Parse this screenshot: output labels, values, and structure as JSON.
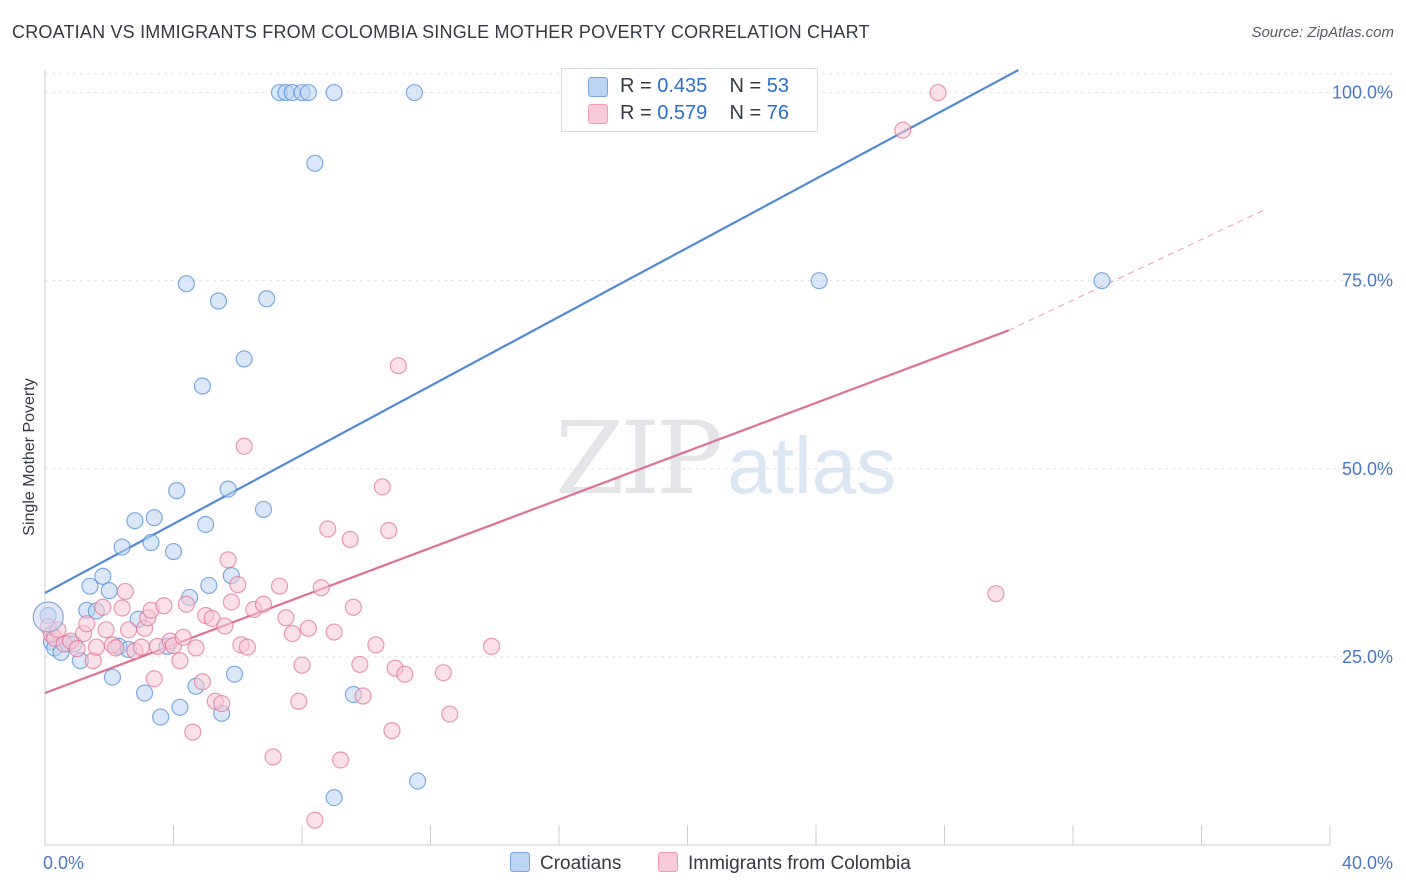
{
  "header": {
    "title": "CROATIAN VS IMMIGRANTS FROM COLOMBIA SINGLE MOTHER POVERTY CORRELATION CHART",
    "source": "Source: ZipAtlas.com"
  },
  "watermark": {
    "zip": "ZIP",
    "atlas": "atlas"
  },
  "legend": {
    "rows": [
      {
        "r_label": "R =",
        "r_value": "0.435",
        "n_label": "N =",
        "n_value": "53",
        "color": "#a8c8f0"
      },
      {
        "r_label": "R =",
        "r_value": "0.579",
        "n_label": "N =",
        "n_value": "76",
        "color": "#f5b6c9"
      }
    ]
  },
  "bottom_legend": {
    "series1": "Croatians",
    "series2": "Immigrants from Colombia"
  },
  "chart_data": {
    "type": "scatter",
    "ylabel": "Single Mother Poverty",
    "xlim": [
      0,
      40
    ],
    "ylim": [
      0,
      103
    ],
    "x_ticks": [
      0,
      4,
      8,
      12,
      16,
      20,
      24,
      28,
      32,
      36,
      40
    ],
    "x_tick_labels": [
      {
        "value": 0,
        "label": "0.0%"
      },
      {
        "value": 40,
        "label": "40.0%"
      }
    ],
    "y_ticks": [
      {
        "value": 25,
        "label": "25.0%"
      },
      {
        "value": 50,
        "label": "50.0%"
      },
      {
        "value": 75,
        "label": "75.0%"
      },
      {
        "value": 100,
        "label": "100.0%"
      }
    ],
    "grid": true,
    "series": [
      {
        "name": "Croatians",
        "color": "#4f8ad6",
        "fill": "#b9d3f3",
        "trend": {
          "x": [
            0,
            30.3
          ],
          "y": [
            33.5,
            103
          ]
        },
        "points": [
          [
            0.1,
            30.5
          ],
          [
            0.2,
            27.0
          ],
          [
            0.3,
            26.2
          ],
          [
            0.5,
            25.6
          ],
          [
            0.7,
            26.8
          ],
          [
            0.9,
            26.7
          ],
          [
            1.1,
            24.5
          ],
          [
            1.3,
            31.2
          ],
          [
            1.4,
            34.4
          ],
          [
            1.6,
            31.1
          ],
          [
            1.8,
            35.7
          ],
          [
            2.0,
            33.8
          ],
          [
            2.1,
            22.3
          ],
          [
            2.3,
            26.4
          ],
          [
            2.4,
            39.6
          ],
          [
            2.6,
            26.0
          ],
          [
            2.8,
            43.1
          ],
          [
            2.9,
            30.0
          ],
          [
            3.1,
            20.2
          ],
          [
            3.3,
            40.2
          ],
          [
            3.4,
            43.5
          ],
          [
            3.6,
            17.0
          ],
          [
            3.8,
            26.4
          ],
          [
            4.0,
            39.0
          ],
          [
            4.1,
            47.1
          ],
          [
            4.2,
            18.3
          ],
          [
            4.4,
            74.6
          ],
          [
            4.5,
            32.9
          ],
          [
            4.7,
            21.1
          ],
          [
            4.9,
            61.0
          ],
          [
            5.0,
            42.6
          ],
          [
            5.1,
            34.5
          ],
          [
            5.4,
            72.3
          ],
          [
            5.5,
            17.5
          ],
          [
            5.7,
            47.3
          ],
          [
            5.8,
            35.8
          ],
          [
            5.9,
            22.7
          ],
          [
            6.2,
            64.6
          ],
          [
            6.9,
            72.6
          ],
          [
            6.8,
            44.6
          ],
          [
            7.3,
            100.0
          ],
          [
            7.5,
            100.0
          ],
          [
            7.7,
            100.0
          ],
          [
            8.0,
            100.0
          ],
          [
            8.2,
            100.0
          ],
          [
            8.4,
            90.6
          ],
          [
            9.0,
            100.0
          ],
          [
            9.6,
            20.0
          ],
          [
            9.0,
            6.3
          ],
          [
            11.5,
            100.0
          ],
          [
            11.6,
            8.5
          ],
          [
            24.1,
            75.0
          ],
          [
            32.9,
            75.0
          ]
        ]
      },
      {
        "name": "Immigrants from Colombia",
        "color": "#e07098",
        "fill": "#f7c6d5",
        "trend": {
          "x": [
            0,
            30.0
          ],
          "y": [
            20.2,
            68.4
          ]
        },
        "trend_ext": {
          "x": [
            30.0,
            38.0
          ],
          "y": [
            68.4,
            84.5
          ]
        },
        "points": [
          [
            0.1,
            29.0
          ],
          [
            0.2,
            28.0
          ],
          [
            0.3,
            27.5
          ],
          [
            0.4,
            28.6
          ],
          [
            0.6,
            26.7
          ],
          [
            0.8,
            27.1
          ],
          [
            1.0,
            26.1
          ],
          [
            1.2,
            28.1
          ],
          [
            1.3,
            29.4
          ],
          [
            1.5,
            24.5
          ],
          [
            1.6,
            26.3
          ],
          [
            1.8,
            31.6
          ],
          [
            1.9,
            28.6
          ],
          [
            2.1,
            26.6
          ],
          [
            2.2,
            26.2
          ],
          [
            2.4,
            31.5
          ],
          [
            2.5,
            33.7
          ],
          [
            2.6,
            28.6
          ],
          [
            2.8,
            25.8
          ],
          [
            3.0,
            26.3
          ],
          [
            3.1,
            28.8
          ],
          [
            3.2,
            30.2
          ],
          [
            3.3,
            31.2
          ],
          [
            3.4,
            22.1
          ],
          [
            3.5,
            26.4
          ],
          [
            3.7,
            31.8
          ],
          [
            3.9,
            27.1
          ],
          [
            4.0,
            26.5
          ],
          [
            4.2,
            24.5
          ],
          [
            4.3,
            27.6
          ],
          [
            4.4,
            32.0
          ],
          [
            4.6,
            15.0
          ],
          [
            4.7,
            26.2
          ],
          [
            4.9,
            21.7
          ],
          [
            5.0,
            30.5
          ],
          [
            5.2,
            30.1
          ],
          [
            5.3,
            19.1
          ],
          [
            5.5,
            18.8
          ],
          [
            5.6,
            29.1
          ],
          [
            5.7,
            37.9
          ],
          [
            5.8,
            32.3
          ],
          [
            6.0,
            34.6
          ],
          [
            6.1,
            26.6
          ],
          [
            6.2,
            53.0
          ],
          [
            6.3,
            26.3
          ],
          [
            6.5,
            31.3
          ],
          [
            6.8,
            32.0
          ],
          [
            7.1,
            11.7
          ],
          [
            7.3,
            34.4
          ],
          [
            7.5,
            30.2
          ],
          [
            7.7,
            28.1
          ],
          [
            7.9,
            19.1
          ],
          [
            8.0,
            23.9
          ],
          [
            8.2,
            28.8
          ],
          [
            8.4,
            3.3
          ],
          [
            8.6,
            34.2
          ],
          [
            8.8,
            42.0
          ],
          [
            9.0,
            28.3
          ],
          [
            9.2,
            11.3
          ],
          [
            9.5,
            40.6
          ],
          [
            9.6,
            31.6
          ],
          [
            9.8,
            24.0
          ],
          [
            9.9,
            19.8
          ],
          [
            10.3,
            26.6
          ],
          [
            10.5,
            47.6
          ],
          [
            10.7,
            41.8
          ],
          [
            10.8,
            15.2
          ],
          [
            10.9,
            23.5
          ],
          [
            11.2,
            22.7
          ],
          [
            11.0,
            63.7
          ],
          [
            12.4,
            22.9
          ],
          [
            12.6,
            17.4
          ],
          [
            13.9,
            26.4
          ],
          [
            26.7,
            95.0
          ],
          [
            27.8,
            100.0
          ],
          [
            29.6,
            33.4
          ]
        ]
      }
    ]
  }
}
